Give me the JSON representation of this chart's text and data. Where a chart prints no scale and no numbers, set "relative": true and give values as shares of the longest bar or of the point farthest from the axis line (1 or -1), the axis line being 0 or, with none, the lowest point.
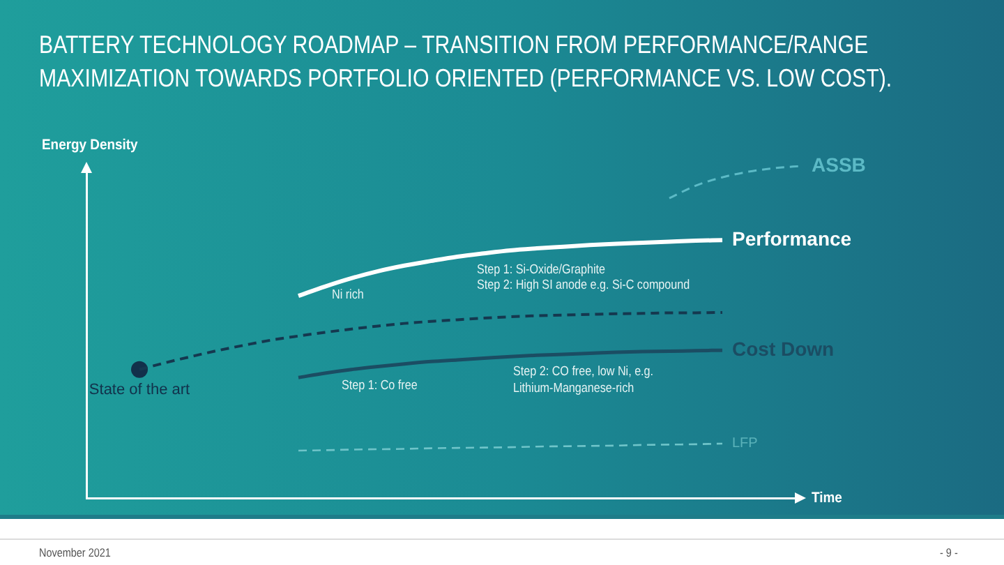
{
  "chart_data": {
    "type": "line",
    "relative": true,
    "title": "BATTERY TECHNOLOGY ROADMAP – TRANSITION FROM PERFORMANCE/RANGE MAXIMIZATION TOWARDS PORTFOLIO ORIENTED (PERFORMANCE VS. LOW COST).",
    "xlabel": "Time",
    "ylabel": "Energy Density",
    "categories": [
      null,
      null,
      null,
      null,
      null,
      null,
      null,
      null,
      null,
      null,
      null,
      null,
      null,
      null,
      null,
      null,
      null,
      null,
      null,
      null,
      null,
      null,
      null,
      null,
      null,
      null,
      null,
      null
    ],
    "series": [
      {
        "name": "Performance",
        "color": "#ffffff",
        "values": [
          null,
          null,
          null,
          null,
          null,
          null,
          null,
          null,
          0.609,
          0.637,
          0.662,
          0.683,
          0.7,
          0.714,
          0.727,
          0.737,
          0.746,
          0.752,
          0.757,
          0.762,
          0.766,
          0.769,
          0.772,
          0.775,
          0.777,
          null,
          null,
          null
        ]
      },
      {
        "color": "#15384f",
        "line_style": "dashed",
        "values": [
          null,
          null,
          0.387,
          0.408,
          0.427,
          0.445,
          0.461,
          0.476,
          0.488,
          0.499,
          0.509,
          0.518,
          0.526,
          0.532,
          0.537,
          0.542,
          0.546,
          0.549,
          0.551,
          0.553,
          0.555,
          0.556,
          0.558,
          0.558,
          0.559,
          null,
          null,
          null
        ]
      },
      {
        "name": "Cost Down",
        "color": "#1b4d63",
        "values": [
          null,
          null,
          null,
          null,
          null,
          null,
          null,
          null,
          0.363,
          0.376,
          0.387,
          0.396,
          0.404,
          0.411,
          0.416,
          0.421,
          0.426,
          0.43,
          0.433,
          0.436,
          0.439,
          0.441,
          0.442,
          0.444,
          0.445,
          null,
          null,
          null
        ]
      },
      {
        "name": "ASSB",
        "color": "#5cbac6",
        "line_style": "dashed",
        "values": [
          null,
          null,
          null,
          null,
          null,
          null,
          null,
          null,
          null,
          null,
          null,
          null,
          null,
          null,
          null,
          null,
          null,
          null,
          null,
          null,
          null,
          null,
          0.903,
          0.941,
          0.966,
          0.983,
          0.994,
          1.0
        ]
      },
      {
        "name": "LFP",
        "color": "#6fc4c9",
        "line_style": "dashed",
        "values": [
          null,
          null,
          null,
          null,
          null,
          null,
          null,
          null,
          0.143,
          0.144,
          0.146,
          0.147,
          0.148,
          0.15,
          0.151,
          0.152,
          0.153,
          0.155,
          0.156,
          0.157,
          0.158,
          0.16,
          0.161,
          0.162,
          0.164,
          null,
          null,
          null
        ]
      },
      {
        "name": "State of the art",
        "marker": "circle",
        "color": "#12304a",
        "values": [
          null,
          null,
          0.387,
          null,
          null,
          null,
          null,
          null,
          null,
          null,
          null,
          null,
          null,
          null,
          null,
          null,
          null,
          null,
          null,
          null,
          null,
          null,
          null,
          null,
          null,
          null,
          null,
          null
        ]
      }
    ],
    "annotations": [
      "Ni rich",
      "Step 1: Si-Oxide/Graphite",
      "Step 2: High SI anode e.g. Si-C compound",
      "Step 1: Co free",
      "Step 2: CO free, low Ni, e.g. Lithium-Manganese-rich",
      "November 2021",
      "- 9 -"
    ]
  }
}
